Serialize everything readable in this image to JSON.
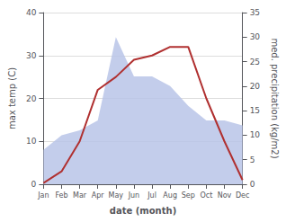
{
  "chart_data": {
    "type": "line",
    "xlabel": "date (month)",
    "ylabel": "max temp (C)",
    "y2label": "med. precipitation (kg/m2)",
    "categories": [
      "Jan",
      "Feb",
      "Mar",
      "Apr",
      "May",
      "Jun",
      "Jul",
      "Aug",
      "Sep",
      "Oct",
      "Nov",
      "Dec"
    ],
    "series": [
      {
        "type": "area",
        "color": "#b8c4e8",
        "axis": "y2",
        "values": [
          7,
          10,
          11,
          13,
          30,
          22,
          22,
          20,
          16,
          13,
          13,
          12
        ]
      },
      {
        "type": "line",
        "color": "#b03030",
        "values": [
          0.3,
          3,
          10,
          22,
          25,
          29,
          30,
          32,
          32,
          20,
          10,
          1
        ]
      }
    ],
    "ylim": [
      0,
      40
    ],
    "yticks": [
      0,
      10,
      20,
      30,
      40
    ],
    "y2lim": [
      0,
      35
    ],
    "y2ticks": [
      0,
      5,
      10,
      15,
      20,
      25,
      30,
      35
    ],
    "grid": true
  }
}
